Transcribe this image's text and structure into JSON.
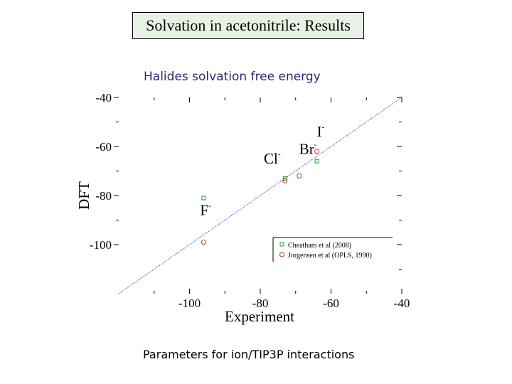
{
  "slide": {
    "title": "Solvation in acetonitrile: Results",
    "subtitle": "Halides solvation free energy",
    "caption": "Parameters for ion/TIP3P interactions"
  },
  "chart_data": {
    "type": "scatter",
    "xlabel": "Experiment",
    "ylabel": "DFT",
    "xlim": [
      -120,
      -40
    ],
    "ylim": [
      -120,
      -40
    ],
    "x_ticks": [
      -100,
      -80,
      -60,
      -40
    ],
    "y_ticks": [
      -40,
      -60,
      -80,
      -100
    ],
    "reference_line": "y = x",
    "legend_position": "bottom-right",
    "series": [
      {
        "name": "Cheatham et al (2008)",
        "marker": "square",
        "color": "#1a9a3a",
        "points": [
          {
            "x": -96,
            "y": -81
          },
          {
            "x": -73,
            "y": -73
          },
          {
            "x": -64,
            "y": -66
          }
        ]
      },
      {
        "name": "Jorgensen et al (OPLS, 1990)",
        "marker": "circle",
        "color": "#c0392b",
        "points": [
          {
            "x": -96,
            "y": -99
          },
          {
            "x": -73,
            "y": -74
          },
          {
            "x": -69,
            "y": -72
          },
          {
            "x": -64,
            "y": -62
          }
        ]
      }
    ],
    "annotations": [
      {
        "base": "F",
        "sup": "-",
        "x": -97,
        "y": -88
      },
      {
        "base": "Cl",
        "sup": "-",
        "x": -79,
        "y": -67
      },
      {
        "base": "Br",
        "sup": "-",
        "x": -69,
        "y": -63
      },
      {
        "base": "I",
        "sup": "-",
        "x": -64,
        "y": -56
      }
    ]
  }
}
